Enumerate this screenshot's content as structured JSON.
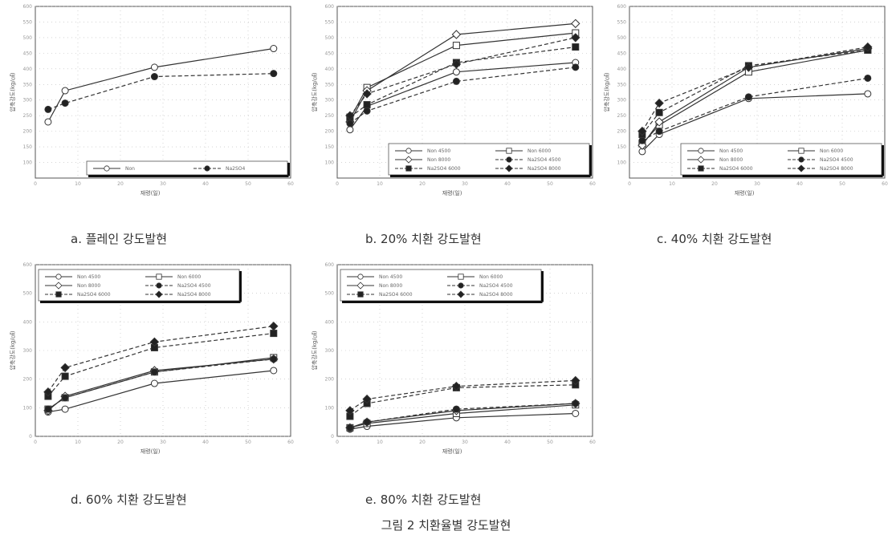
{
  "figure_caption": "그림 2 치환율별 강도발현",
  "chart_data": [
    {
      "type": "line",
      "panel": "a",
      "caption": "a. 플레인 강도발현",
      "xlabel": "재령(일)",
      "ylabel": "압축강도(kg/㎠)",
      "xlim": [
        0,
        60
      ],
      "ylim": [
        50,
        600
      ],
      "xticks": [
        0,
        10,
        20,
        30,
        40,
        50,
        60
      ],
      "yticks": [
        100,
        150,
        200,
        250,
        300,
        350,
        400,
        450,
        500,
        550,
        600
      ],
      "x": [
        3,
        7,
        28,
        56
      ],
      "legend_position": "bottom-right",
      "series": [
        {
          "name": "Non",
          "marker": "open-circle",
          "dash": "solid",
          "values": [
            230,
            330,
            405,
            465
          ]
        },
        {
          "name": "Na2SO4",
          "marker": "filled-circle",
          "dash": "dashed",
          "values": [
            270,
            290,
            375,
            385
          ]
        }
      ]
    },
    {
      "type": "line",
      "panel": "b",
      "caption": "b. 20% 치환 강도발현",
      "xlabel": "재령(일)",
      "ylabel": "압축강도(kg/㎠)",
      "xlim": [
        0,
        60
      ],
      "ylim": [
        50,
        600
      ],
      "xticks": [
        0,
        10,
        20,
        30,
        40,
        50,
        60
      ],
      "yticks": [
        100,
        150,
        200,
        250,
        300,
        350,
        400,
        450,
        500,
        550,
        600
      ],
      "x": [
        3,
        7,
        28,
        56
      ],
      "legend_position": "bottom-right",
      "series": [
        {
          "name": "Non 4500",
          "marker": "open-circle",
          "dash": "solid",
          "values": [
            205,
            280,
            390,
            420
          ]
        },
        {
          "name": "Non 6000",
          "marker": "open-square",
          "dash": "solid",
          "values": [
            240,
            340,
            475,
            515
          ]
        },
        {
          "name": "Non 8000",
          "marker": "open-diamond",
          "dash": "solid",
          "values": [
            230,
            330,
            510,
            545
          ]
        },
        {
          "name": "Na2SO4 4500",
          "marker": "filled-circle",
          "dash": "dashed",
          "values": [
            225,
            265,
            360,
            405
          ]
        },
        {
          "name": "Na2SO4 6000",
          "marker": "filled-square",
          "dash": "dashed",
          "values": [
            245,
            285,
            420,
            470
          ]
        },
        {
          "name": "Na2SO4 8000",
          "marker": "filled-diamond",
          "dash": "dashed",
          "values": [
            250,
            320,
            415,
            500
          ]
        }
      ]
    },
    {
      "type": "line",
      "panel": "c",
      "caption": "c. 40% 치환 강도발현",
      "xlabel": "재령(일)",
      "ylabel": "압축강도(kg/㎠)",
      "xlim": [
        0,
        60
      ],
      "ylim": [
        50,
        600
      ],
      "xticks": [
        0,
        10,
        20,
        30,
        40,
        50,
        60
      ],
      "yticks": [
        100,
        150,
        200,
        250,
        300,
        350,
        400,
        450,
        500,
        550,
        600
      ],
      "x": [
        3,
        7,
        28,
        56
      ],
      "legend_position": "bottom-right",
      "series": [
        {
          "name": "Non 4500",
          "marker": "open-circle",
          "dash": "solid",
          "values": [
            135,
            190,
            305,
            320
          ]
        },
        {
          "name": "Non 6000",
          "marker": "open-square",
          "dash": "solid",
          "values": [
            160,
            220,
            390,
            460
          ]
        },
        {
          "name": "Non 8000",
          "marker": "open-diamond",
          "dash": "solid",
          "values": [
            155,
            230,
            405,
            465
          ]
        },
        {
          "name": "Na2SO4 4500",
          "marker": "filled-circle",
          "dash": "dashed",
          "values": [
            170,
            200,
            310,
            370
          ]
        },
        {
          "name": "Na2SO4 6000",
          "marker": "filled-square",
          "dash": "dashed",
          "values": [
            190,
            260,
            410,
            460
          ]
        },
        {
          "name": "Na2SO4 8000",
          "marker": "filled-diamond",
          "dash": "dashed",
          "values": [
            200,
            290,
            405,
            470
          ]
        }
      ]
    },
    {
      "type": "line",
      "panel": "d",
      "caption": "d. 60% 치환 강도발현",
      "xlabel": "재령(일)",
      "ylabel": "압축강도(kg/㎠)",
      "xlim": [
        0,
        60
      ],
      "ylim": [
        0,
        600
      ],
      "xticks": [
        0,
        10,
        20,
        30,
        40,
        50,
        60
      ],
      "yticks": [
        0,
        100,
        200,
        300,
        400,
        500,
        600
      ],
      "x": [
        3,
        7,
        28,
        56
      ],
      "legend_position": "top-left",
      "series": [
        {
          "name": "Non 4500",
          "marker": "open-circle",
          "dash": "solid",
          "values": [
            85,
            95,
            185,
            230
          ]
        },
        {
          "name": "Non 6000",
          "marker": "open-square",
          "dash": "solid",
          "values": [
            95,
            135,
            225,
            275
          ]
        },
        {
          "name": "Non 8000",
          "marker": "open-diamond",
          "dash": "solid",
          "values": [
            90,
            140,
            230,
            270
          ]
        },
        {
          "name": "Na2SO4 4500",
          "marker": "filled-circle",
          "dash": "dashed",
          "values": [
            95,
            135,
            225,
            270
          ]
        },
        {
          "name": "Na2SO4 6000",
          "marker": "filled-square",
          "dash": "dashed",
          "values": [
            140,
            210,
            310,
            360
          ]
        },
        {
          "name": "Na2SO4 8000",
          "marker": "filled-diamond",
          "dash": "dashed",
          "values": [
            155,
            240,
            330,
            385
          ]
        }
      ]
    },
    {
      "type": "line",
      "panel": "e",
      "caption": "e. 80% 치환 강도발현",
      "xlabel": "재령(일)",
      "ylabel": "압축강도(kg/㎠)",
      "xlim": [
        0,
        60
      ],
      "ylim": [
        0,
        600
      ],
      "xticks": [
        0,
        10,
        20,
        30,
        40,
        50,
        60
      ],
      "yticks": [
        0,
        100,
        200,
        300,
        400,
        500,
        600
      ],
      "x": [
        3,
        7,
        28,
        56
      ],
      "legend_position": "top-left",
      "series": [
        {
          "name": "Non 4500",
          "marker": "open-circle",
          "dash": "solid",
          "values": [
            25,
            35,
            65,
            80
          ]
        },
        {
          "name": "Non 6000",
          "marker": "open-square",
          "dash": "solid",
          "values": [
            30,
            45,
            80,
            110
          ]
        },
        {
          "name": "Non 8000",
          "marker": "open-diamond",
          "dash": "solid",
          "values": [
            30,
            50,
            90,
            115
          ]
        },
        {
          "name": "Na2SO4 4500",
          "marker": "filled-circle",
          "dash": "dashed",
          "values": [
            30,
            50,
            95,
            115
          ]
        },
        {
          "name": "Na2SO4 6000",
          "marker": "filled-square",
          "dash": "dashed",
          "values": [
            70,
            115,
            170,
            180
          ]
        },
        {
          "name": "Na2SO4 8000",
          "marker": "filled-diamond",
          "dash": "dashed",
          "values": [
            90,
            130,
            175,
            195
          ]
        }
      ]
    }
  ]
}
